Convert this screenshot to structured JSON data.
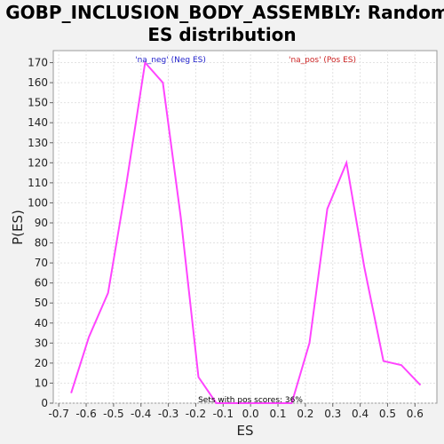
{
  "chart_data": {
    "type": "line",
    "title_line1": "GOBP_INCLUSION_BODY_ASSEMBLY: Random",
    "title_line2": "ES distribution",
    "xlabel": "ES",
    "ylabel": "P(ES)",
    "xlim": [
      -0.72,
      0.68
    ],
    "ylim": [
      0,
      176
    ],
    "xticks": [
      "-0.7",
      "-0.6",
      "-0.5",
      "-0.4",
      "-0.3",
      "-0.2",
      "-0.1",
      "0.0",
      "0.1",
      "0.2",
      "0.3",
      "0.4",
      "0.5",
      "0.6"
    ],
    "yticks": [
      "0",
      "10",
      "20",
      "30",
      "40",
      "50",
      "60",
      "70",
      "80",
      "90",
      "100",
      "110",
      "120",
      "130",
      "140",
      "150",
      "160",
      "170"
    ],
    "grid": true,
    "line_color": "#ff44ff",
    "annotations": {
      "neg": {
        "text": "'na_neg' (Neg ES)",
        "color": "#2222cc"
      },
      "pos": {
        "text": "'na_pos' (Pos ES)",
        "color": "#cc2222"
      },
      "bottom": {
        "text": "Sets with pos scores: 36%",
        "color": "#000000"
      }
    },
    "series": [
      {
        "x": [
          -0.655,
          -0.59,
          -0.52,
          -0.455,
          -0.385,
          -0.32,
          -0.255,
          -0.19,
          -0.125,
          0.15,
          0.215,
          0.28,
          0.35,
          0.415,
          0.485,
          0.55,
          0.62
        ],
        "y": [
          5,
          33,
          55,
          108,
          170,
          160,
          93,
          13,
          0,
          0,
          30,
          97,
          120,
          68,
          21,
          19,
          9
        ]
      }
    ]
  }
}
